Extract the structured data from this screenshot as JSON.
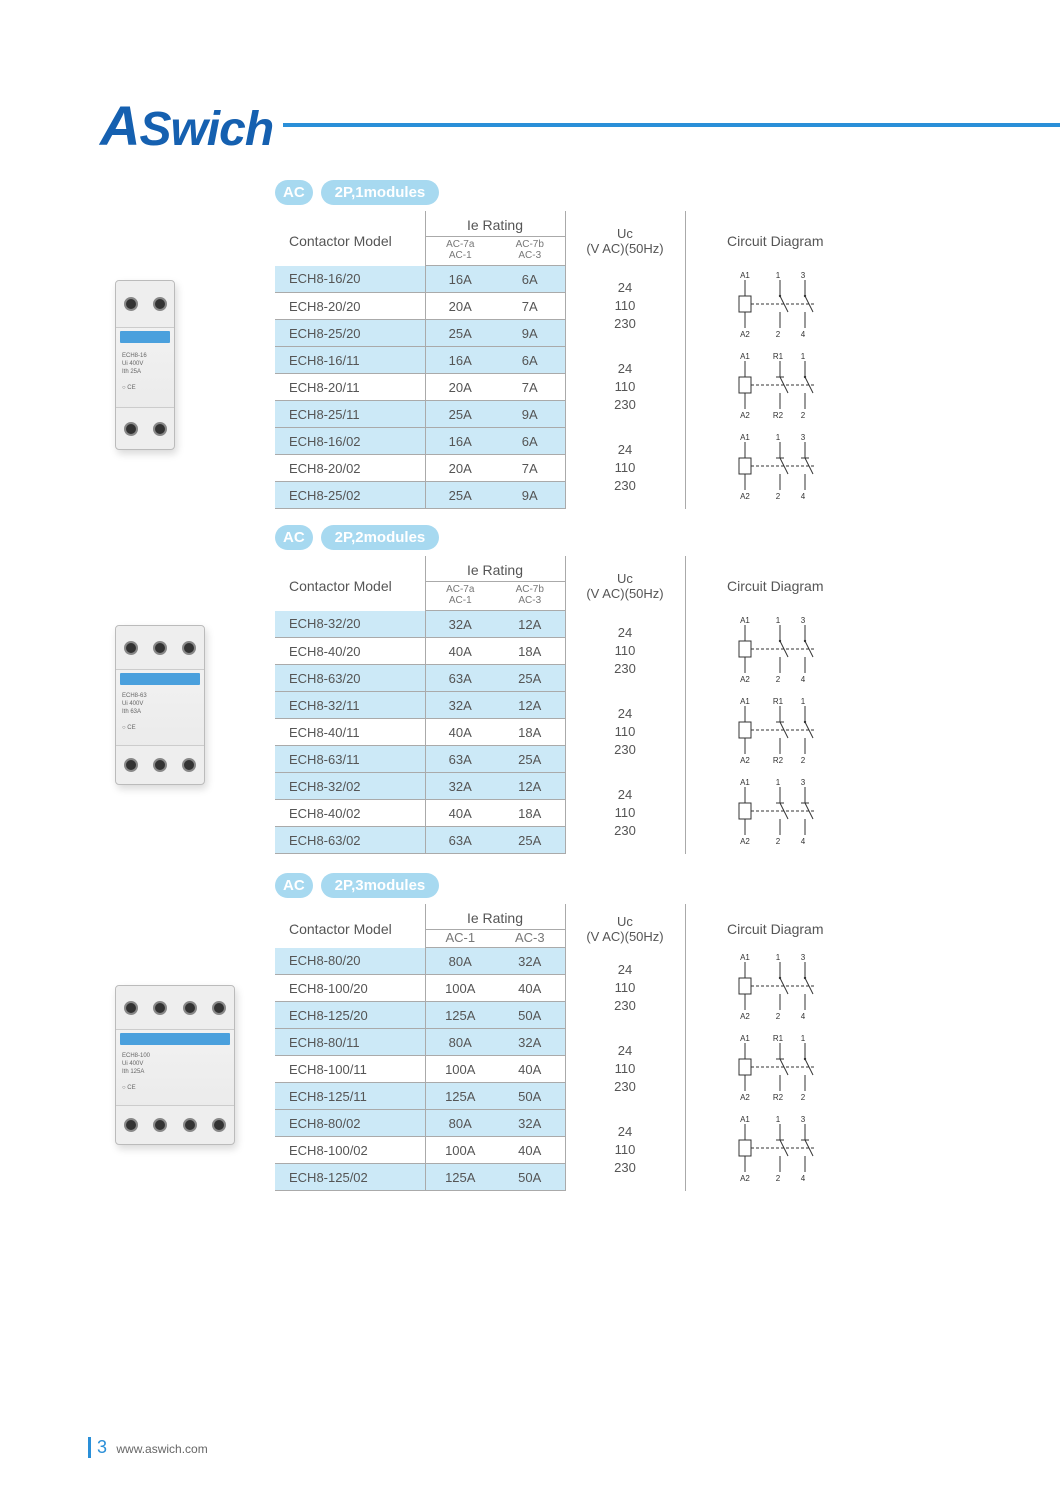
{
  "brand": {
    "a": "A",
    "rest": "Swich"
  },
  "footer": {
    "page": "3",
    "url": "www.aswich.com"
  },
  "colors": {
    "brand_blue": "#1560b0",
    "accent_blue": "#2a8fd8",
    "badge_bg": "#a7d9f0",
    "row_odd": "#cce9f7",
    "border": "#aaaaaa",
    "text": "#555555"
  },
  "header_labels": {
    "model": "Contactor Model",
    "ie": "Ie Rating",
    "uc_line1": "Uc",
    "uc_line2": "(V AC)(50Hz)",
    "cd": "Circuit Diagram",
    "sub_a_line1": "AC-7a",
    "sub_a_line2": "AC-1",
    "sub_b_line1": "AC-7b",
    "sub_b_line2": "AC-3",
    "sub3_a": "AC-1",
    "sub3_b": "AC-3"
  },
  "uc_values": [
    "24",
    "110",
    "230"
  ],
  "sections": [
    {
      "badges": [
        "AC",
        "2P,1modules"
      ],
      "product_label": "ECH8-16",
      "groups": [
        {
          "diagram": "no",
          "rows": [
            {
              "model": "ECH8-16/20",
              "ie1": "16A",
              "ie2": "6A"
            },
            {
              "model": "ECH8-20/20",
              "ie1": "20A",
              "ie2": "7A"
            },
            {
              "model": "ECH8-25/20",
              "ie1": "25A",
              "ie2": "9A"
            }
          ]
        },
        {
          "diagram": "nc_no",
          "rows": [
            {
              "model": "ECH8-16/11",
              "ie1": "16A",
              "ie2": "6A"
            },
            {
              "model": "ECH8-20/11",
              "ie1": "20A",
              "ie2": "7A"
            },
            {
              "model": "ECH8-25/11",
              "ie1": "25A",
              "ie2": "9A"
            }
          ]
        },
        {
          "diagram": "nc",
          "rows": [
            {
              "model": "ECH8-16/02",
              "ie1": "16A",
              "ie2": "6A"
            },
            {
              "model": "ECH8-20/02",
              "ie1": "20A",
              "ie2": "7A"
            },
            {
              "model": "ECH8-25/02",
              "ie1": "25A",
              "ie2": "9A"
            }
          ]
        }
      ]
    },
    {
      "badges": [
        "AC",
        "2P,2modules"
      ],
      "product_label": "ECH8-63",
      "groups": [
        {
          "diagram": "no",
          "rows": [
            {
              "model": "ECH8-32/20",
              "ie1": "32A",
              "ie2": "12A"
            },
            {
              "model": "ECH8-40/20",
              "ie1": "40A",
              "ie2": "18A"
            },
            {
              "model": "ECH8-63/20",
              "ie1": "63A",
              "ie2": "25A"
            }
          ]
        },
        {
          "diagram": "nc_no",
          "rows": [
            {
              "model": "ECH8-32/11",
              "ie1": "32A",
              "ie2": "12A"
            },
            {
              "model": "ECH8-40/11",
              "ie1": "40A",
              "ie2": "18A"
            },
            {
              "model": "ECH8-63/11",
              "ie1": "63A",
              "ie2": "25A"
            }
          ]
        },
        {
          "diagram": "nc",
          "rows": [
            {
              "model": "ECH8-32/02",
              "ie1": "32A",
              "ie2": "12A"
            },
            {
              "model": "ECH8-40/02",
              "ie1": "40A",
              "ie2": "18A"
            },
            {
              "model": "ECH8-63/02",
              "ie1": "63A",
              "ie2": "25A"
            }
          ]
        }
      ]
    },
    {
      "badges": [
        "AC",
        "2P,3modules"
      ],
      "product_label": "ECH8-100",
      "sub_style": "large",
      "groups": [
        {
          "diagram": "no",
          "rows": [
            {
              "model": "ECH8-80/20",
              "ie1": "80A",
              "ie2": "32A"
            },
            {
              "model": "ECH8-100/20",
              "ie1": "100A",
              "ie2": "40A"
            },
            {
              "model": "ECH8-125/20",
              "ie1": "125A",
              "ie2": "50A"
            }
          ]
        },
        {
          "diagram": "nc_no",
          "rows": [
            {
              "model": "ECH8-80/11",
              "ie1": "80A",
              "ie2": "32A"
            },
            {
              "model": "ECH8-100/11",
              "ie1": "100A",
              "ie2": "40A"
            },
            {
              "model": "ECH8-125/11",
              "ie1": "125A",
              "ie2": "50A"
            }
          ]
        },
        {
          "diagram": "nc",
          "rows": [
            {
              "model": "ECH8-80/02",
              "ie1": "80A",
              "ie2": "32A"
            },
            {
              "model": "ECH8-100/02",
              "ie1": "100A",
              "ie2": "40A"
            },
            {
              "model": "ECH8-125/02",
              "ie1": "125A",
              "ie2": "50A"
            }
          ]
        }
      ]
    }
  ]
}
